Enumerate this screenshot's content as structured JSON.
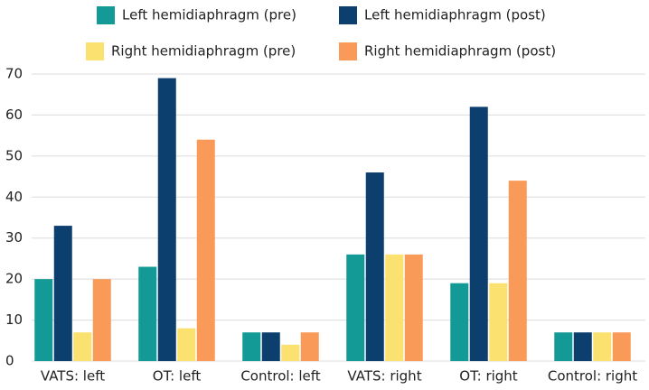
{
  "chart_data": {
    "type": "bar",
    "categories": [
      "VATS: left",
      "OT: left",
      "Control: left",
      "VATS: right",
      "OT: right",
      "Control: right"
    ],
    "series": [
      {
        "name": "Left hemidiaphragm (pre)",
        "color": "#139a96",
        "values": [
          20,
          23,
          7,
          26,
          19,
          7
        ]
      },
      {
        "name": "Left hemidiaphragm (post)",
        "color": "#0c3e6e",
        "values": [
          33,
          69,
          7,
          46,
          62,
          7
        ]
      },
      {
        "name": "Right hemidiaphragm (pre)",
        "color": "#fbe270",
        "values": [
          7,
          8,
          4,
          26,
          19,
          7
        ]
      },
      {
        "name": "Right hemidiaphragm (post)",
        "color": "#f99a58",
        "values": [
          20,
          54,
          7,
          26,
          44,
          7
        ]
      }
    ],
    "ylim": [
      0,
      70
    ],
    "yticks": [
      0,
      10,
      20,
      30,
      40,
      50,
      60,
      70
    ],
    "grid": true,
    "legend": "top"
  }
}
